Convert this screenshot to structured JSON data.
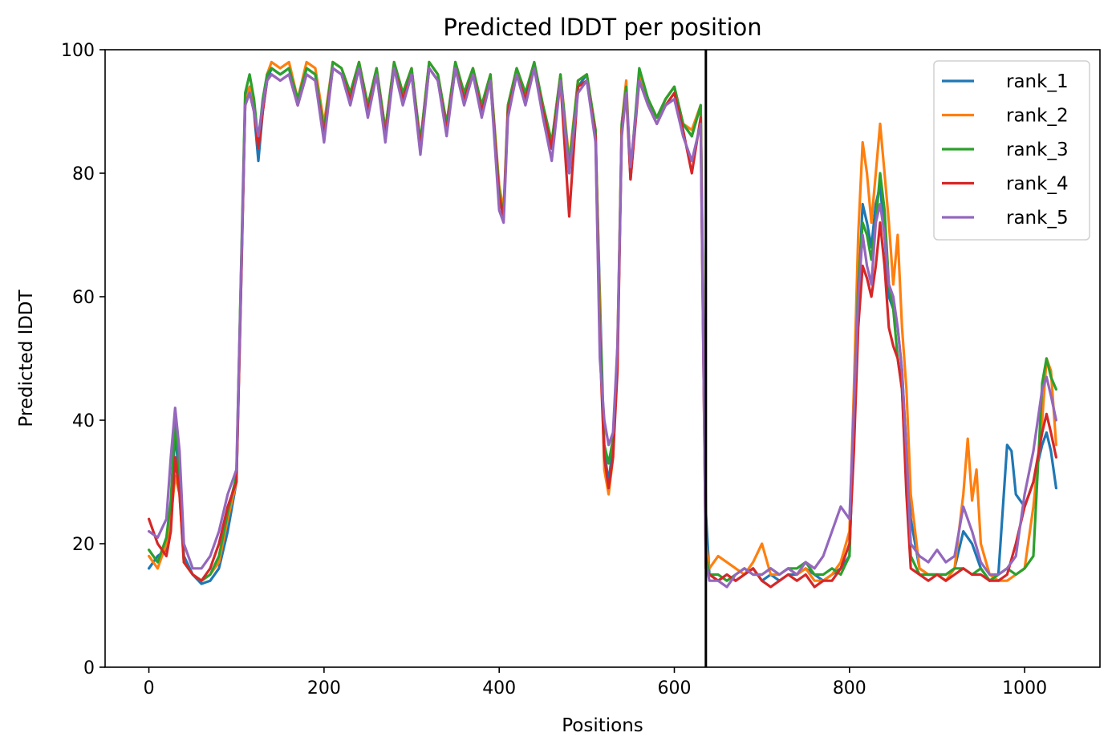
{
  "chart_data": {
    "type": "line",
    "title": "Predicted lDDT per position",
    "xlabel": "Positions",
    "ylabel": "Predicted lDDT",
    "xlim": [
      -50,
      1086
    ],
    "ylim": [
      0,
      100
    ],
    "xticks": [
      0,
      200,
      400,
      600,
      800,
      1000
    ],
    "yticks": [
      0,
      20,
      40,
      60,
      80,
      100
    ],
    "grid": false,
    "legend_position": "top-right",
    "boundary_x": 636,
    "boundary_color": "#000000",
    "series": [
      {
        "name": "rank_1",
        "color": "#1f77b4",
        "x": [
          0,
          10,
          20,
          25,
          30,
          35,
          40,
          50,
          60,
          70,
          80,
          90,
          100,
          105,
          110,
          115,
          120,
          125,
          130,
          135,
          140,
          150,
          160,
          170,
          180,
          190,
          200,
          210,
          220,
          230,
          240,
          250,
          260,
          270,
          280,
          290,
          300,
          310,
          320,
          330,
          340,
          350,
          360,
          370,
          380,
          390,
          400,
          405,
          410,
          420,
          430,
          440,
          450,
          460,
          470,
          480,
          490,
          500,
          510,
          515,
          520,
          525,
          530,
          535,
          540,
          545,
          550,
          560,
          570,
          580,
          590,
          600,
          610,
          620,
          630,
          636,
          640,
          650,
          660,
          670,
          680,
          690,
          700,
          710,
          720,
          730,
          740,
          750,
          760,
          770,
          780,
          790,
          800,
          805,
          810,
          815,
          820,
          825,
          830,
          835,
          840,
          845,
          850,
          855,
          860,
          865,
          870,
          880,
          890,
          900,
          910,
          920,
          930,
          940,
          950,
          960,
          970,
          980,
          985,
          990,
          1000,
          1010,
          1020,
          1025,
          1030,
          1036
        ],
        "y": [
          16,
          18,
          19,
          26,
          38,
          30,
          18,
          15,
          13.5,
          14,
          16,
          22,
          30,
          60,
          92,
          94,
          90,
          82,
          90,
          95,
          97,
          96,
          97,
          91,
          97,
          96,
          86,
          97,
          96,
          92,
          97,
          90,
          96,
          86,
          97,
          92,
          96,
          84,
          97,
          95,
          87,
          97,
          92,
          96,
          90,
          95,
          76,
          73,
          90,
          96,
          92,
          97,
          90,
          84,
          95,
          80,
          94,
          96,
          86,
          60,
          35,
          30,
          36,
          50,
          88,
          94,
          79,
          96,
          92,
          89,
          92,
          94,
          88,
          86,
          91,
          25,
          15,
          14,
          15,
          14,
          15,
          16,
          14,
          15,
          14,
          15,
          15,
          16,
          15,
          14,
          15,
          16,
          18,
          40,
          60,
          75,
          72,
          68,
          75,
          78,
          70,
          60,
          58,
          55,
          48,
          35,
          24,
          16,
          15,
          15,
          15,
          16,
          22,
          20,
          16,
          14,
          15,
          36,
          35,
          28,
          26,
          30,
          36,
          38,
          35,
          29
        ]
      },
      {
        "name": "rank_2",
        "color": "#ff7f0e",
        "x": [
          0,
          10,
          20,
          25,
          30,
          35,
          40,
          50,
          60,
          70,
          80,
          90,
          100,
          105,
          110,
          115,
          120,
          125,
          130,
          135,
          140,
          150,
          160,
          170,
          180,
          190,
          200,
          210,
          220,
          230,
          240,
          250,
          260,
          270,
          280,
          290,
          300,
          310,
          320,
          330,
          340,
          350,
          360,
          370,
          380,
          390,
          400,
          405,
          410,
          420,
          430,
          440,
          450,
          460,
          470,
          480,
          490,
          500,
          510,
          515,
          520,
          525,
          530,
          535,
          540,
          545,
          550,
          560,
          570,
          580,
          590,
          600,
          610,
          620,
          630,
          636,
          640,
          650,
          660,
          670,
          680,
          690,
          700,
          710,
          720,
          730,
          740,
          750,
          760,
          770,
          780,
          790,
          800,
          805,
          810,
          815,
          820,
          825,
          830,
          835,
          840,
          845,
          850,
          855,
          860,
          865,
          870,
          880,
          890,
          900,
          910,
          920,
          930,
          935,
          940,
          945,
          950,
          960,
          970,
          980,
          990,
          1000,
          1010,
          1020,
          1025,
          1030,
          1036
        ],
        "y": [
          18,
          16,
          20,
          24,
          31,
          28,
          17,
          15,
          14,
          15,
          17,
          24,
          30,
          62,
          91,
          94,
          91,
          84,
          91,
          96,
          98,
          97,
          98,
          92,
          98,
          97,
          88,
          98,
          97,
          93,
          98,
          91,
          97,
          87,
          98,
          93,
          97,
          85,
          98,
          96,
          88,
          98,
          93,
          97,
          91,
          96,
          78,
          74,
          91,
          97,
          93,
          97,
          91,
          85,
          96,
          82,
          95,
          96,
          87,
          58,
          32,
          28,
          34,
          52,
          88,
          95,
          80,
          96,
          92,
          89,
          92,
          94,
          88,
          87,
          91,
          20,
          16,
          18,
          17,
          16,
          15,
          17,
          20,
          15,
          15,
          16,
          15,
          16,
          14,
          14,
          15,
          17,
          22,
          45,
          70,
          85,
          80,
          72,
          80,
          88,
          80,
          72,
          62,
          70,
          55,
          45,
          28,
          16,
          15,
          15,
          14,
          16,
          28,
          37,
          27,
          32,
          20,
          15,
          14,
          14,
          15,
          16,
          26,
          40,
          50,
          48,
          36
        ]
      },
      {
        "name": "rank_3",
        "color": "#2ca02c",
        "x": [
          0,
          10,
          20,
          25,
          30,
          35,
          40,
          50,
          60,
          70,
          80,
          90,
          100,
          105,
          110,
          115,
          120,
          125,
          130,
          135,
          140,
          150,
          160,
          170,
          180,
          190,
          200,
          210,
          220,
          230,
          240,
          250,
          260,
          270,
          280,
          290,
          300,
          310,
          320,
          330,
          340,
          350,
          360,
          370,
          380,
          390,
          400,
          405,
          410,
          420,
          430,
          440,
          450,
          460,
          470,
          480,
          490,
          500,
          510,
          515,
          520,
          525,
          530,
          535,
          540,
          545,
          550,
          560,
          570,
          580,
          590,
          600,
          610,
          620,
          630,
          636,
          640,
          650,
          660,
          670,
          680,
          690,
          700,
          710,
          720,
          730,
          740,
          750,
          760,
          770,
          780,
          790,
          800,
          805,
          810,
          815,
          820,
          825,
          830,
          835,
          840,
          845,
          850,
          855,
          860,
          865,
          870,
          880,
          890,
          900,
          910,
          920,
          930,
          940,
          950,
          960,
          970,
          980,
          990,
          1000,
          1010,
          1020,
          1025,
          1030,
          1036
        ],
        "y": [
          19,
          17,
          21,
          27,
          40,
          32,
          17,
          15,
          14,
          15,
          18,
          25,
          31,
          63,
          93,
          96,
          92,
          85,
          92,
          96,
          97,
          96,
          97,
          92,
          97,
          96,
          87,
          98,
          97,
          93,
          98,
          91,
          97,
          87,
          98,
          93,
          97,
          85,
          98,
          96,
          88,
          98,
          93,
          97,
          91,
          96,
          77,
          73,
          91,
          97,
          93,
          98,
          91,
          85,
          96,
          81,
          95,
          96,
          87,
          55,
          36,
          33,
          37,
          50,
          88,
          94,
          80,
          97,
          92,
          89,
          92,
          94,
          88,
          86,
          91,
          18,
          15,
          15,
          14,
          15,
          16,
          15,
          15,
          16,
          15,
          16,
          16,
          17,
          15,
          15,
          16,
          15,
          18,
          40,
          62,
          72,
          70,
          66,
          72,
          80,
          74,
          62,
          58,
          50,
          45,
          30,
          18,
          15,
          15,
          15,
          15,
          16,
          16,
          15,
          16,
          14,
          15,
          16,
          15,
          16,
          18,
          46,
          50,
          47,
          45
        ]
      },
      {
        "name": "rank_4",
        "color": "#d62728",
        "x": [
          0,
          10,
          20,
          25,
          30,
          35,
          40,
          50,
          60,
          70,
          80,
          90,
          100,
          105,
          110,
          115,
          120,
          125,
          130,
          135,
          140,
          150,
          160,
          170,
          180,
          190,
          200,
          210,
          220,
          230,
          240,
          250,
          260,
          270,
          280,
          290,
          300,
          310,
          320,
          330,
          340,
          350,
          360,
          370,
          380,
          390,
          400,
          405,
          410,
          420,
          430,
          440,
          450,
          460,
          470,
          480,
          490,
          500,
          510,
          515,
          520,
          525,
          530,
          535,
          540,
          545,
          550,
          560,
          570,
          580,
          590,
          600,
          610,
          620,
          630,
          636,
          640,
          650,
          660,
          670,
          680,
          690,
          700,
          710,
          720,
          730,
          740,
          750,
          760,
          770,
          780,
          790,
          800,
          805,
          810,
          815,
          820,
          825,
          830,
          835,
          840,
          845,
          850,
          855,
          860,
          865,
          870,
          880,
          890,
          900,
          910,
          920,
          930,
          940,
          950,
          960,
          970,
          980,
          990,
          1000,
          1010,
          1020,
          1025,
          1030,
          1036
        ],
        "y": [
          24,
          20,
          18,
          22,
          34,
          28,
          17,
          15,
          14,
          16,
          20,
          26,
          30,
          60,
          91,
          93,
          90,
          84,
          90,
          95,
          96,
          95,
          96,
          91,
          96,
          95,
          86,
          97,
          96,
          92,
          97,
          90,
          96,
          86,
          97,
          92,
          96,
          84,
          97,
          95,
          87,
          97,
          92,
          96,
          90,
          95,
          76,
          73,
          90,
          96,
          92,
          97,
          90,
          84,
          95,
          73,
          94,
          95,
          86,
          52,
          34,
          29,
          34,
          48,
          87,
          93,
          79,
          95,
          91,
          88,
          91,
          93,
          87,
          80,
          89,
          16,
          15,
          14,
          15,
          14,
          15,
          16,
          14,
          13,
          14,
          15,
          14,
          15,
          13,
          14,
          14,
          16,
          20,
          35,
          55,
          65,
          63,
          60,
          65,
          72,
          65,
          55,
          52,
          50,
          45,
          28,
          16,
          15,
          14,
          15,
          14,
          15,
          16,
          15,
          15,
          14,
          14,
          15,
          20,
          26,
          30,
          38,
          41,
          38,
          34
        ]
      },
      {
        "name": "rank_5",
        "color": "#9467bd",
        "x": [
          0,
          10,
          20,
          25,
          30,
          35,
          40,
          50,
          60,
          70,
          80,
          90,
          100,
          105,
          110,
          115,
          120,
          125,
          130,
          135,
          140,
          150,
          160,
          170,
          180,
          190,
          200,
          210,
          220,
          230,
          240,
          250,
          260,
          270,
          280,
          290,
          300,
          310,
          320,
          330,
          340,
          350,
          360,
          370,
          380,
          390,
          400,
          405,
          410,
          420,
          430,
          440,
          450,
          460,
          470,
          480,
          490,
          500,
          510,
          515,
          520,
          525,
          530,
          535,
          540,
          545,
          550,
          560,
          570,
          580,
          590,
          600,
          610,
          620,
          630,
          636,
          640,
          650,
          660,
          670,
          680,
          690,
          700,
          710,
          720,
          730,
          740,
          750,
          760,
          770,
          780,
          790,
          800,
          805,
          810,
          815,
          820,
          825,
          830,
          835,
          840,
          845,
          850,
          855,
          860,
          865,
          870,
          880,
          890,
          900,
          910,
          920,
          930,
          940,
          950,
          960,
          970,
          980,
          990,
          1000,
          1010,
          1020,
          1025,
          1030,
          1036
        ],
        "y": [
          22,
          21,
          24,
          34,
          42,
          35,
          20,
          16,
          16,
          18,
          22,
          28,
          32,
          62,
          91,
          93,
          90,
          86,
          91,
          95,
          96,
          95,
          96,
          91,
          96,
          95,
          85,
          97,
          96,
          91,
          97,
          89,
          96,
          85,
          97,
          91,
          96,
          83,
          97,
          95,
          86,
          97,
          91,
          96,
          89,
          95,
          74,
          72,
          89,
          96,
          91,
          97,
          89,
          82,
          95,
          80,
          93,
          95,
          85,
          50,
          40,
          36,
          38,
          52,
          86,
          93,
          81,
          95,
          91,
          88,
          91,
          92,
          86,
          82,
          88,
          17,
          14,
          14,
          13,
          15,
          16,
          15,
          15,
          16,
          15,
          16,
          15,
          17,
          16,
          18,
          22,
          26,
          24,
          42,
          60,
          70,
          65,
          62,
          72,
          75,
          70,
          62,
          60,
          55,
          48,
          35,
          20,
          18,
          17,
          19,
          17,
          18,
          26,
          22,
          17,
          15,
          15,
          16,
          18,
          28,
          35,
          45,
          47,
          44,
          40
        ]
      }
    ]
  }
}
